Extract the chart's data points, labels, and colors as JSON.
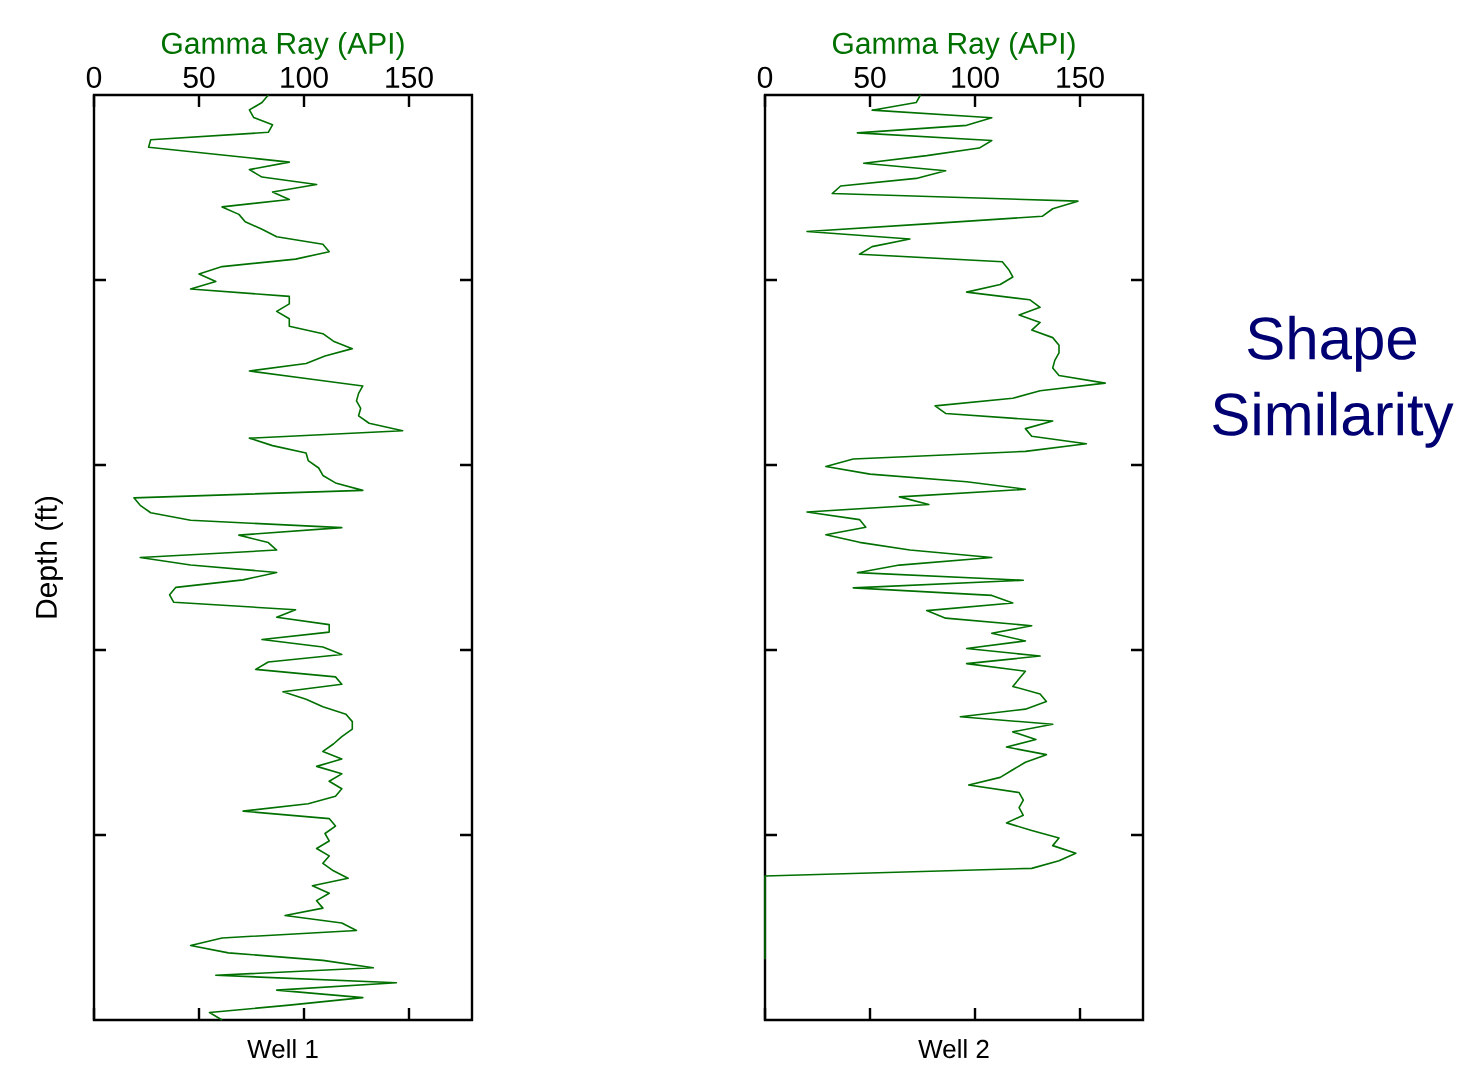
{
  "chart_data": [
    {
      "type": "line",
      "orientation": "horizontal",
      "title": "Well 1",
      "xlabel": "Gamma Ray (API)",
      "ylabel": "Depth (ft)",
      "xlim": [
        0,
        180
      ],
      "xticks": [
        0,
        50,
        100,
        150
      ],
      "tick_labels": "x",
      "color": "#007000",
      "categories": [
        null,
        null,
        null,
        null,
        null,
        null,
        null,
        null,
        null,
        null,
        null,
        null,
        null,
        null,
        null,
        null,
        null,
        null,
        null,
        null,
        null,
        null,
        null,
        null,
        null,
        null,
        null,
        null,
        null,
        null,
        null,
        null,
        null,
        null,
        null,
        null,
        null,
        null,
        null,
        null,
        null,
        null,
        null,
        null,
        null,
        null,
        null,
        null,
        null,
        null,
        null,
        null,
        null,
        null,
        null,
        null,
        null,
        null,
        null,
        null,
        null,
        null,
        null,
        null,
        null,
        null,
        null,
        null,
        null,
        null,
        null,
        null,
        null,
        null,
        null,
        null,
        null,
        null,
        null,
        null,
        null,
        null,
        null,
        null,
        null,
        null,
        null,
        null,
        null,
        null,
        null,
        null,
        null,
        null,
        null,
        null,
        null,
        null,
        null,
        null,
        null,
        null,
        null,
        null,
        null,
        null,
        null,
        null,
        null,
        null,
        null,
        null,
        null,
        null,
        null,
        null,
        null,
        null,
        null,
        null,
        null,
        null,
        null,
        null,
        null
      ],
      "values": [
        83,
        80,
        74,
        76,
        85,
        83,
        27,
        26,
        60,
        93,
        74,
        80,
        106,
        85,
        93,
        61,
        69,
        72,
        80,
        87,
        109,
        112,
        96,
        61,
        50,
        58,
        46,
        93,
        93,
        87,
        93,
        93,
        109,
        114,
        123,
        110,
        101,
        74,
        101,
        128,
        126,
        125,
        127,
        126,
        131,
        147,
        74,
        85,
        101,
        102,
        107,
        109,
        115,
        128,
        19,
        22,
        27,
        46,
        118,
        69,
        83,
        87,
        22,
        46,
        87,
        71,
        39,
        36,
        38,
        96,
        87,
        112,
        112,
        80,
        109,
        118,
        83,
        77,
        115,
        118,
        90,
        101,
        109,
        120,
        123,
        123,
        118,
        114,
        109,
        118,
        106,
        118,
        112,
        118,
        115,
        102,
        71,
        112,
        115,
        110,
        112,
        106,
        112,
        109,
        114,
        121,
        104,
        112,
        106,
        109,
        91,
        118,
        125,
        61,
        46,
        64,
        109,
        133,
        58,
        144,
        87,
        128,
        93,
        55,
        61
      ]
    },
    {
      "type": "line",
      "orientation": "horizontal",
      "title": "Well 2",
      "xlabel": "Gamma Ray (API)",
      "xlim": [
        0,
        180
      ],
      "xticks": [
        0,
        50,
        100,
        150
      ],
      "tick_labels": "x",
      "color": "#007000",
      "annotations": [
        "Shape Similarity"
      ],
      "categories": [
        null,
        null,
        null,
        null,
        null,
        null,
        null,
        null,
        null,
        null,
        null,
        null,
        null,
        null,
        null,
        null,
        null,
        null,
        null,
        null,
        null,
        null,
        null,
        null,
        null,
        null,
        null,
        null,
        null,
        null,
        null,
        null,
        null,
        null,
        null,
        null,
        null,
        null,
        null,
        null,
        null,
        null,
        null,
        null,
        null,
        null,
        null,
        null,
        null,
        null,
        null,
        null,
        null,
        null,
        null,
        null,
        null,
        null,
        null,
        null,
        null,
        null,
        null,
        null,
        null,
        null,
        null,
        null,
        null,
        null,
        null,
        null,
        null,
        null,
        null,
        null,
        null,
        null,
        null,
        null,
        null,
        null,
        null,
        null,
        null,
        null,
        null,
        null,
        null,
        null,
        null,
        null,
        null,
        null,
        null,
        null,
        null,
        null,
        null,
        null,
        null,
        null,
        null,
        null,
        null,
        null,
        null,
        null,
        null,
        null,
        null,
        null,
        null,
        null,
        null,
        null,
        null,
        null,
        null,
        null,
        null,
        null,
        null
      ],
      "values": [
        74,
        72,
        51,
        108,
        96,
        44,
        108,
        102,
        77,
        47,
        86,
        72,
        36,
        32,
        149,
        137,
        132,
        77,
        20,
        69,
        51,
        45,
        113,
        116,
        118,
        112,
        96,
        126,
        131,
        121,
        131,
        127,
        137,
        140,
        140,
        138,
        137,
        140,
        162,
        131,
        118,
        81,
        86,
        137,
        124,
        127,
        153,
        124,
        42,
        29,
        50,
        96,
        124,
        64,
        78,
        20,
        45,
        48,
        29,
        45,
        69,
        108,
        64,
        44,
        123,
        42,
        108,
        118,
        77,
        86,
        127,
        108,
        124,
        96,
        131,
        96,
        124,
        121,
        118,
        131,
        134,
        124,
        93,
        137,
        118,
        129,
        115,
        134,
        124,
        118,
        112,
        97,
        121,
        123,
        121,
        123,
        115,
        127,
        140,
        137,
        148,
        140,
        127,
        0,
        0,
        0,
        0,
        0,
        0,
        0,
        0,
        0,
        0,
        0,
        0,
        null,
        null,
        null,
        null,
        null,
        null,
        null,
        null
      ]
    }
  ]
}
